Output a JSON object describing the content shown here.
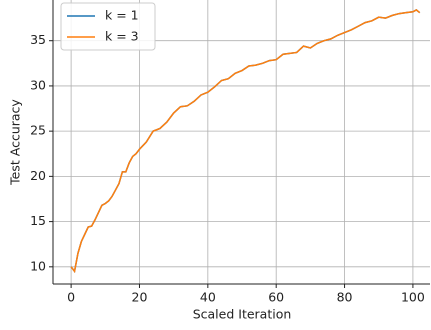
{
  "chart_data": {
    "type": "line",
    "x_label": "Scaled Iteration",
    "y_label": "Test Accuracy",
    "x": [
      0,
      1,
      2,
      3,
      4,
      5,
      6,
      7,
      8,
      9,
      10,
      11,
      12,
      13,
      14,
      15,
      16,
      17,
      18,
      19,
      20,
      22,
      24,
      26,
      28,
      30,
      32,
      34,
      36,
      38,
      40,
      42,
      44,
      46,
      48,
      50,
      52,
      54,
      56,
      58,
      60,
      62,
      64,
      66,
      68,
      70,
      72,
      74,
      76,
      78,
      80,
      82,
      84,
      86,
      88,
      90,
      92,
      94,
      96,
      98,
      100,
      101,
      102
    ],
    "series": [
      {
        "name": "k = 1",
        "color": "#1f77b4",
        "values": [
          10,
          9.5,
          11.5,
          12.8,
          13.6,
          14.4,
          14.5,
          15.2,
          16.0,
          16.8,
          17.0,
          17.3,
          17.8,
          18.5,
          19.2,
          20.5,
          20.5,
          21.5,
          22.2,
          22.5,
          23.0,
          23.8,
          25.0,
          25.3,
          26.0,
          27.0,
          27.7,
          27.8,
          28.3,
          29.0,
          29.3,
          29.9,
          30.6,
          30.8,
          31.4,
          31.7,
          32.2,
          32.3,
          32.5,
          32.8,
          32.9,
          33.5,
          33.6,
          33.7,
          34.4,
          34.2,
          34.7,
          35.0,
          35.2,
          35.6,
          35.9,
          36.2,
          36.6,
          37.0,
          37.2,
          37.6,
          37.5,
          37.8,
          38.0,
          38.1,
          38.2,
          38.4,
          38.1
        ]
      },
      {
        "name": "k = 3",
        "color": "#ff7f0e",
        "values": [
          10,
          9.5,
          11.5,
          12.8,
          13.6,
          14.4,
          14.5,
          15.2,
          16.0,
          16.8,
          17.0,
          17.3,
          17.8,
          18.5,
          19.2,
          20.5,
          20.5,
          21.5,
          22.2,
          22.5,
          23.0,
          23.8,
          25.0,
          25.3,
          26.0,
          27.0,
          27.7,
          27.8,
          28.3,
          29.0,
          29.3,
          29.9,
          30.6,
          30.8,
          31.4,
          31.7,
          32.2,
          32.3,
          32.5,
          32.8,
          32.9,
          33.5,
          33.6,
          33.7,
          34.4,
          34.2,
          34.7,
          35.0,
          35.2,
          35.6,
          35.9,
          36.2,
          36.6,
          37.0,
          37.2,
          37.6,
          37.5,
          37.8,
          38.0,
          38.1,
          38.2,
          38.4,
          38.1
        ]
      }
    ],
    "xlim": [
      -5.3,
      105
    ],
    "xticks": [
      0,
      20,
      40,
      60,
      80,
      100
    ],
    "ylim": [
      8.1,
      39.5
    ],
    "yticks": [
      10,
      15,
      20,
      25,
      30,
      35
    ],
    "grid": true,
    "legend": "upper left"
  }
}
